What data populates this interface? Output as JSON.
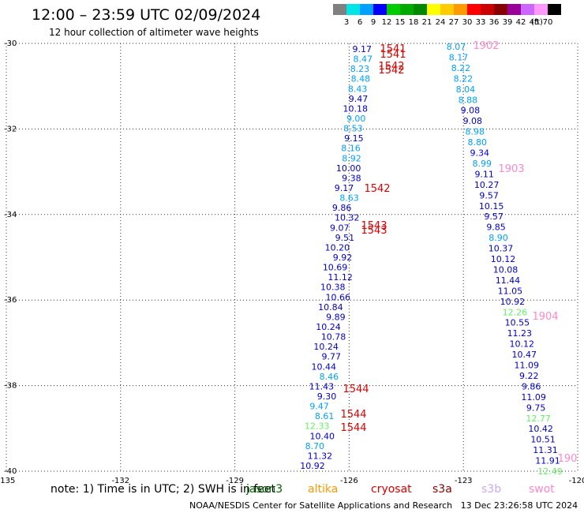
{
  "header": {
    "title": "12:00 – 23:59 UTC 02/09/2024",
    "subtitle": "12 hour collection of altimeter wave heights"
  },
  "legend": {
    "colors": [
      "#808080",
      "#00e5e5",
      "#00a0ff",
      "#0000ff",
      "#00cc00",
      "#00aa00",
      "#008800",
      "#ffff00",
      "#ffcc00",
      "#ff9900",
      "#ff0000",
      "#cc0000",
      "#880000",
      "#990099",
      "#cc66ff",
      "#ff99ff",
      "#000000"
    ],
    "labels": [
      "3",
      "6",
      "9",
      "12",
      "15",
      "18",
      "21",
      "24",
      "27",
      "30",
      "33",
      "36",
      "39",
      "42",
      "45",
      "70",
      "(ft)"
    ]
  },
  "map_data": {
    "lat_labels": [
      "-30",
      "-32",
      "-34",
      "-36",
      "-38",
      "-40"
    ],
    "lon_labels": [
      "-135",
      "-132",
      "-129",
      "-126",
      "-123",
      "-120"
    ],
    "lon_range": [
      -135,
      -120
    ],
    "lat_range": [
      -30,
      -40
    ],
    "track_left": [
      {
        "text": "9.17",
        "color": "#0000cc"
      },
      {
        "text": "8.47",
        "color": "#00a0ff"
      },
      {
        "text": "8.23",
        "color": "#00a0ff"
      },
      {
        "text": "8.48",
        "color": "#00a0ff"
      },
      {
        "text": "8.43",
        "color": "#00a0ff"
      },
      {
        "text": "9.47",
        "color": "#0000cc"
      },
      {
        "text": "10.18",
        "color": "#0000cc"
      },
      {
        "text": "9.00",
        "color": "#00a0ff"
      },
      {
        "text": "8.53",
        "color": "#00a0ff"
      },
      {
        "text": "9.15",
        "color": "#0000cc"
      },
      {
        "text": "8.16",
        "color": "#00a0ff"
      },
      {
        "text": "8.92",
        "color": "#00a0ff"
      },
      {
        "text": "10.00",
        "color": "#0000cc"
      },
      {
        "text": "9.38",
        "color": "#0000cc"
      },
      {
        "text": "9.17",
        "color": "#0000cc"
      },
      {
        "text": "8.63",
        "color": "#00a0ff"
      },
      {
        "text": "9.86",
        "color": "#0000cc"
      },
      {
        "text": "10.32",
        "color": "#0000cc"
      },
      {
        "text": "9.07",
        "color": "#0000cc"
      },
      {
        "text": "9.51",
        "color": "#0000cc"
      },
      {
        "text": "10.20",
        "color": "#0000cc"
      },
      {
        "text": "9.92",
        "color": "#0000cc"
      },
      {
        "text": "10.69",
        "color": "#0000cc"
      },
      {
        "text": "11.12",
        "color": "#0000cc"
      },
      {
        "text": "10.38",
        "color": "#0000cc"
      },
      {
        "text": "10.66",
        "color": "#0000cc"
      },
      {
        "text": "10.84",
        "color": "#0000cc"
      },
      {
        "text": "9.89",
        "color": "#0000cc"
      },
      {
        "text": "10.24",
        "color": "#0000cc"
      },
      {
        "text": "10.78",
        "color": "#0000cc"
      },
      {
        "text": "10.24",
        "color": "#0000cc"
      },
      {
        "text": "9.77",
        "color": "#0000cc"
      },
      {
        "text": "10.44",
        "color": "#0000cc"
      },
      {
        "text": "8.46",
        "color": "#00a0ff"
      },
      {
        "text": "11.43",
        "color": "#0000cc"
      },
      {
        "text": "9.30",
        "color": "#0000cc"
      },
      {
        "text": "9.47",
        "color": "#00a0ff"
      },
      {
        "text": "8.61",
        "color": "#00a0ff"
      },
      {
        "text": "12.33",
        "color": "#66ee66"
      },
      {
        "text": "10.40",
        "color": "#0000cc"
      },
      {
        "text": "8.70",
        "color": "#00a0ff"
      },
      {
        "text": "11.32",
        "color": "#0000cc"
      },
      {
        "text": "10.92",
        "color": "#0000cc"
      }
    ],
    "track_right": [
      {
        "text": "8.07",
        "color": "#00a0ff"
      },
      {
        "text": "8.17",
        "color": "#00a0ff"
      },
      {
        "text": "8.22",
        "color": "#00a0ff"
      },
      {
        "text": "8.22",
        "color": "#00a0ff"
      },
      {
        "text": "8.04",
        "color": "#00a0ff"
      },
      {
        "text": "8.88",
        "color": "#00a0ff"
      },
      {
        "text": "9.08",
        "color": "#0000cc"
      },
      {
        "text": "9.08",
        "color": "#0000cc"
      },
      {
        "text": "8.98",
        "color": "#00a0ff"
      },
      {
        "text": "8.80",
        "color": "#00a0ff"
      },
      {
        "text": "9.34",
        "color": "#0000cc"
      },
      {
        "text": "8.99",
        "color": "#00a0ff"
      },
      {
        "text": "9.11",
        "color": "#0000cc"
      },
      {
        "text": "10.27",
        "color": "#0000cc"
      },
      {
        "text": "9.57",
        "color": "#0000cc"
      },
      {
        "text": "10.15",
        "color": "#0000cc"
      },
      {
        "text": "9.57",
        "color": "#0000cc"
      },
      {
        "text": "9.85",
        "color": "#0000cc"
      },
      {
        "text": "8.90",
        "color": "#00a0ff"
      },
      {
        "text": "10.37",
        "color": "#0000cc"
      },
      {
        "text": "10.12",
        "color": "#0000cc"
      },
      {
        "text": "10.08",
        "color": "#0000cc"
      },
      {
        "text": "11.44",
        "color": "#0000cc"
      },
      {
        "text": "11.05",
        "color": "#0000cc"
      },
      {
        "text": "10.92",
        "color": "#0000cc"
      },
      {
        "text": "12.26",
        "color": "#66ee66"
      },
      {
        "text": "10.55",
        "color": "#0000cc"
      },
      {
        "text": "11.23",
        "color": "#0000cc"
      },
      {
        "text": "10.12",
        "color": "#0000cc"
      },
      {
        "text": "10.47",
        "color": "#0000cc"
      },
      {
        "text": "11.09",
        "color": "#0000cc"
      },
      {
        "text": "9.22",
        "color": "#0000cc"
      },
      {
        "text": "9.86",
        "color": "#0000cc"
      },
      {
        "text": "11.09",
        "color": "#0000cc"
      },
      {
        "text": "9.75",
        "color": "#0000cc"
      },
      {
        "text": "12.77",
        "color": "#66ee66"
      },
      {
        "text": "10.42",
        "color": "#0000cc"
      },
      {
        "text": "10.51",
        "color": "#0000cc"
      },
      {
        "text": "11.31",
        "color": "#0000cc"
      },
      {
        "text": "11.91",
        "color": "#0000cc"
      },
      {
        "text": "12.49",
        "color": "#66ee66"
      }
    ],
    "time_labels": [
      {
        "text": "1541",
        "color": "#dd0000"
      },
      {
        "text": "1541",
        "color": "#dd0000"
      },
      {
        "text": "1542",
        "color": "#dd0000"
      },
      {
        "text": "1542",
        "color": "#dd0000"
      },
      {
        "text": "1542",
        "color": "#dd0000"
      },
      {
        "text": "1543",
        "color": "#dd0000"
      },
      {
        "text": "1543",
        "color": "#dd0000"
      },
      {
        "text": "1544",
        "color": "#dd0000"
      },
      {
        "text": "1544",
        "color": "#dd0000"
      },
      {
        "text": "1544",
        "color": "#dd0000"
      },
      {
        "text": "1902",
        "color": "#ff88cc"
      },
      {
        "text": "1903",
        "color": "#ff88cc"
      },
      {
        "text": "1904",
        "color": "#ff88cc"
      },
      {
        "text": "190",
        "color": "#ff88cc"
      }
    ]
  },
  "footer": {
    "note": "note:  1) Time is in UTC; 2) SWH is in feet",
    "satellites": [
      {
        "name": "jason3",
        "color": "#006600"
      },
      {
        "name": "altika",
        "color": "#ff9900"
      },
      {
        "name": "cryosat",
        "color": "#dd0000"
      },
      {
        "name": "s3a",
        "color": "#880000"
      },
      {
        "name": "s3b",
        "color": "#ccaaee"
      },
      {
        "name": "swot",
        "color": "#ff88cc"
      }
    ],
    "credit": "NOAA/NESDIS Center for Satellite Applications and Research",
    "timestamp": "13 Dec 23:26:58 UTC 2024"
  }
}
